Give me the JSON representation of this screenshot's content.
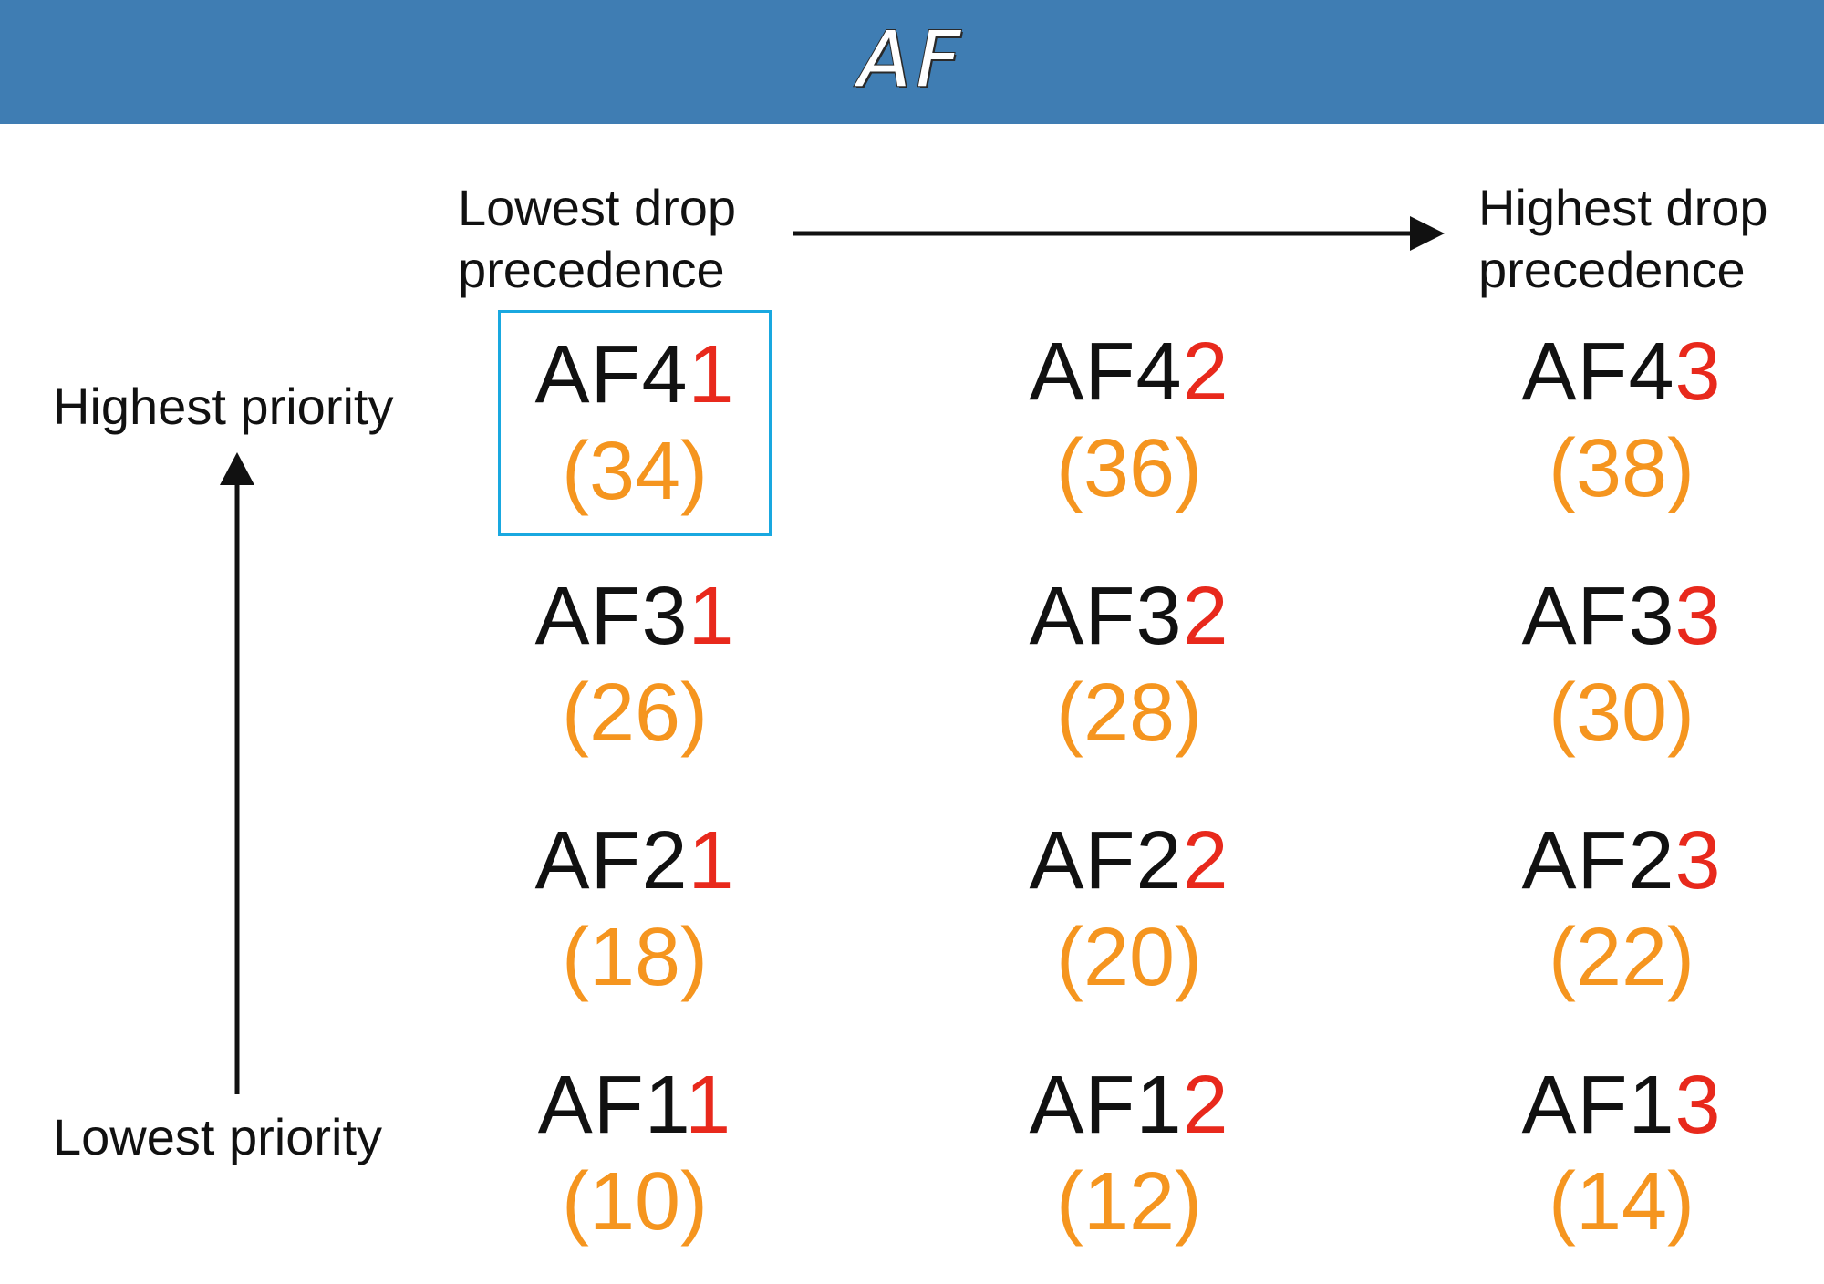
{
  "title": "AF",
  "labels": {
    "lowest_drop": [
      "Lowest drop",
      "precedence"
    ],
    "highest_drop": [
      "Highest drop",
      "precedence"
    ],
    "highest_priority": "Highest priority",
    "lowest_priority": "Lowest priority"
  },
  "colors": {
    "header": "#3f7db3",
    "class_digits": "#111111",
    "drop_digit": "#e8291c",
    "dscp_value": "#f5951f",
    "highlight_border": "#19a8e0"
  },
  "grid": [
    [
      {
        "prefix": "AF4",
        "drop": "1",
        "dscp": "(34)",
        "highlighted": true
      },
      {
        "prefix": "AF4",
        "drop": "2",
        "dscp": "(36)"
      },
      {
        "prefix": "AF4",
        "drop": "3",
        "dscp": "(38)"
      }
    ],
    [
      {
        "prefix": "AF3",
        "drop": "1",
        "dscp": "(26)"
      },
      {
        "prefix": "AF3",
        "drop": "2",
        "dscp": "(28)"
      },
      {
        "prefix": "AF3",
        "drop": "3",
        "dscp": "(30)"
      }
    ],
    [
      {
        "prefix": "AF2",
        "drop": "1",
        "dscp": "(18)"
      },
      {
        "prefix": "AF2",
        "drop": "2",
        "dscp": "(20)"
      },
      {
        "prefix": "AF2",
        "drop": "3",
        "dscp": "(22)"
      }
    ],
    [
      {
        "prefix": "AF1",
        "drop": "1",
        "dscp": "(10)"
      },
      {
        "prefix": "AF1",
        "drop": "2",
        "dscp": "(12)"
      },
      {
        "prefix": "AF1",
        "drop": "3",
        "dscp": "(14)"
      }
    ]
  ]
}
